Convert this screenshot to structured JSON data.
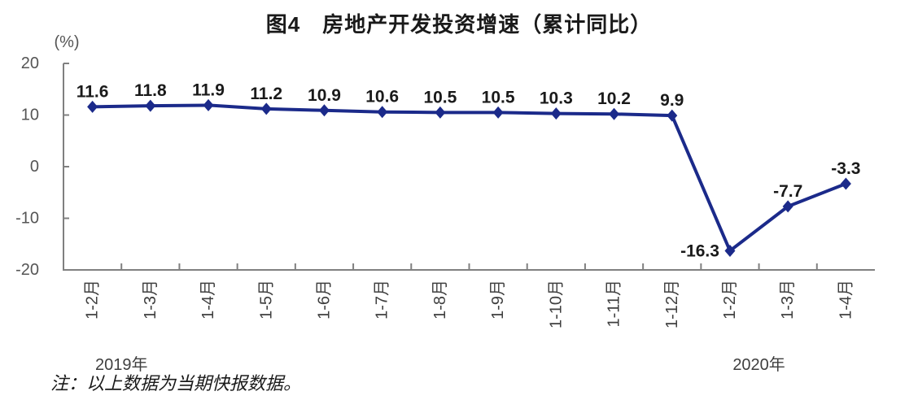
{
  "figure": {
    "title": "图4　房地产开发投资增速（累计同比）",
    "note": "注：以上数据为当期快报数据。"
  },
  "chart_data": {
    "type": "line",
    "title": "图4　房地产开发投资增速（累计同比）",
    "unit_label": "(%)",
    "categories": [
      "1-2月",
      "1-3月",
      "1-4月",
      "1-5月",
      "1-6月",
      "1-7月",
      "1-8月",
      "1-9月",
      "1-10月",
      "1-11月",
      "1-12月",
      "1-2月",
      "1-3月",
      "1-4月"
    ],
    "values": [
      11.6,
      11.8,
      11.9,
      11.2,
      10.9,
      10.6,
      10.5,
      10.5,
      10.3,
      10.2,
      9.9,
      -16.3,
      -7.7,
      -3.3
    ],
    "data_labels": [
      "11.6",
      "11.8",
      "11.9",
      "11.2",
      "10.9",
      "10.6",
      "10.5",
      "10.5",
      "10.3",
      "10.2",
      "9.9",
      "-16.3",
      "-7.7",
      "-3.3"
    ],
    "label_placement": [
      "above",
      "above",
      "above",
      "above",
      "above",
      "above",
      "above",
      "above",
      "above",
      "above",
      "above",
      "left",
      "above",
      "above"
    ],
    "year_groups": [
      {
        "label": "2019年",
        "span": [
          0,
          10
        ]
      },
      {
        "label": "2020年",
        "span": [
          11,
          13
        ]
      }
    ],
    "y_axis": {
      "ticks": [
        20,
        10,
        0,
        -10,
        -20
      ],
      "range": [
        -20,
        20
      ]
    },
    "x_tick_marks": "category-boundaries",
    "grid": false,
    "legend": false,
    "note": "注：以上数据为当期快报数据。",
    "colors": {
      "line": "#1B2A8A",
      "marker": "#1B2A8A",
      "axis": "#808080"
    }
  }
}
